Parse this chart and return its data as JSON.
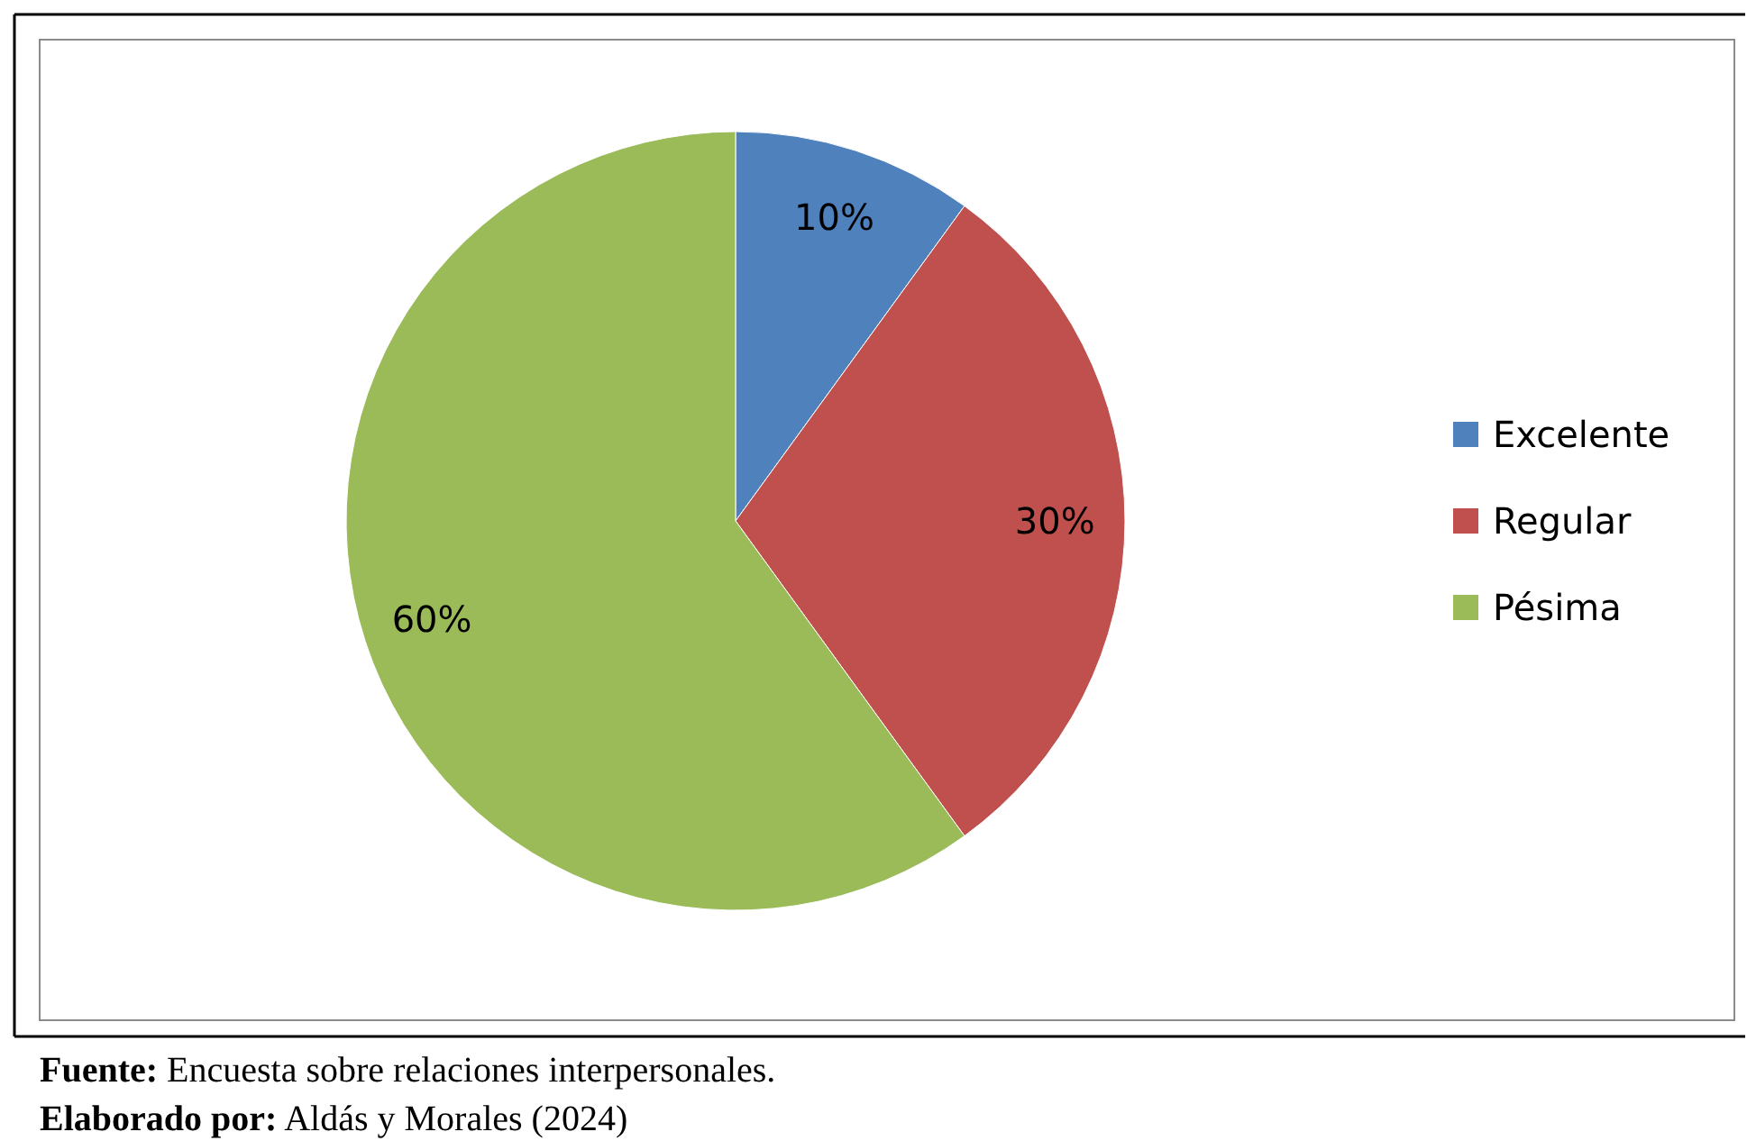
{
  "chart_data": {
    "type": "pie",
    "categories": [
      "Excelente",
      "Regular",
      "Pésima"
    ],
    "values": [
      10,
      30,
      60
    ],
    "colors": [
      "#4f81bd",
      "#c0504d",
      "#9bbb59"
    ],
    "value_labels": [
      "10%",
      "30%",
      "60%"
    ],
    "legend": "right",
    "annotations": [
      "Fuente: Encuesta sobre relaciones interpersonales.",
      "Elaborado por: Aldás y Morales (2024)"
    ]
  }
}
